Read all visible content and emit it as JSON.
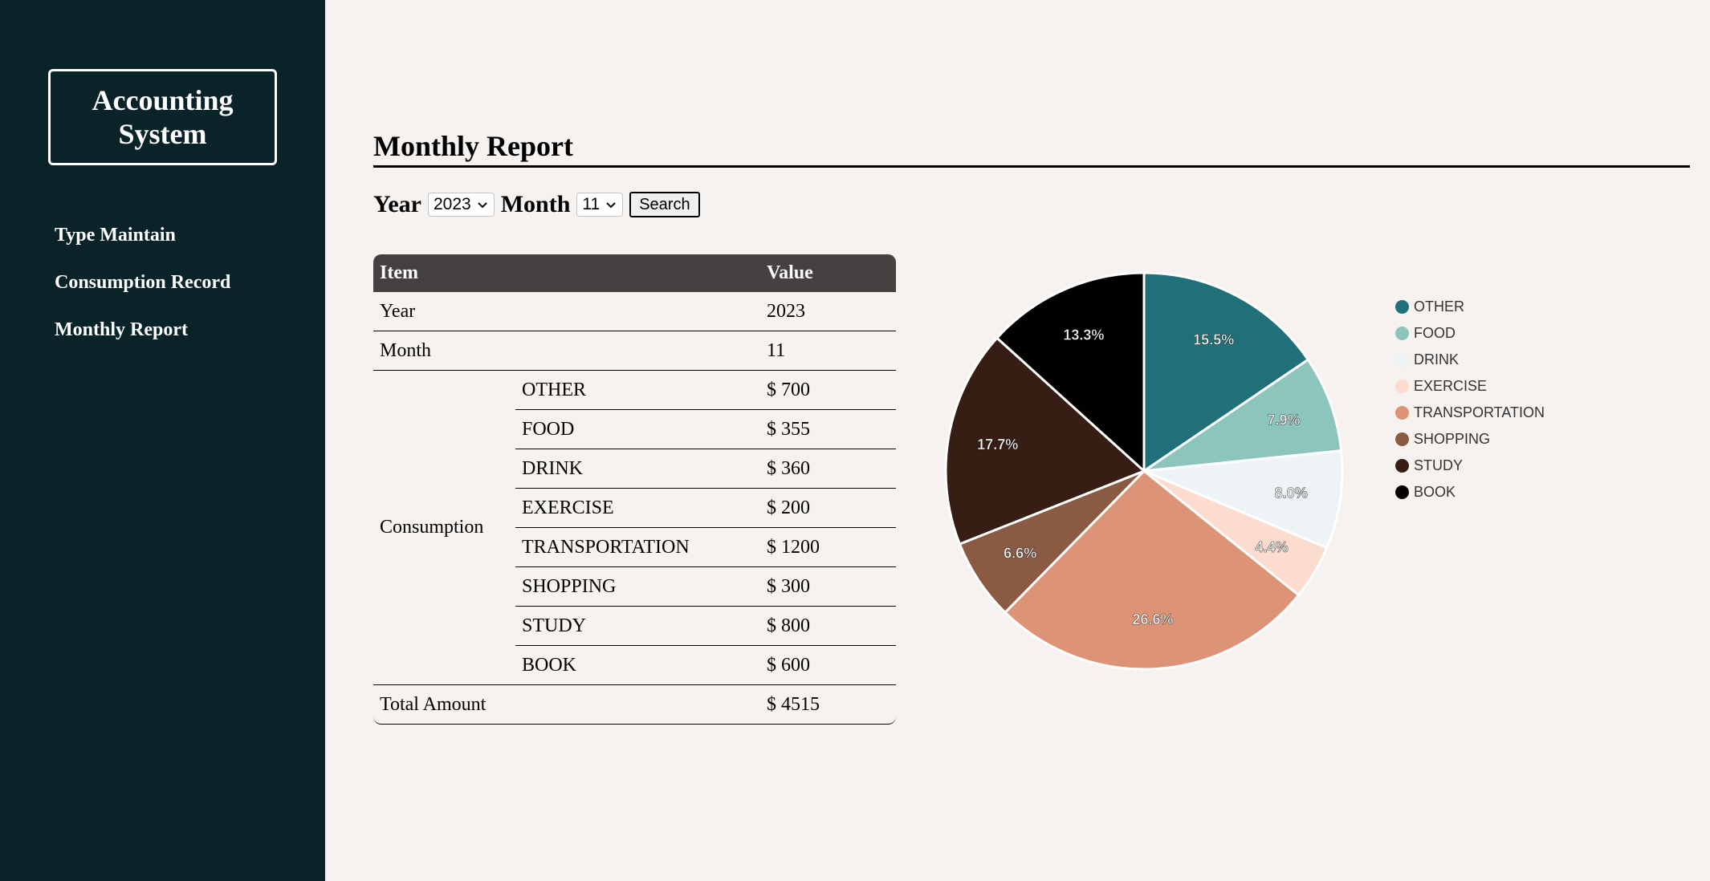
{
  "sidebar": {
    "brand": "Accounting System",
    "nav": [
      {
        "label": "Type Maintain"
      },
      {
        "label": "Consumption Record"
      },
      {
        "label": "Monthly Report"
      }
    ]
  },
  "main": {
    "title": "Monthly Report",
    "filters": {
      "year_label": "Year",
      "year_value": "2023",
      "month_label": "Month",
      "month_value": "11",
      "search_label": "Search"
    },
    "table": {
      "headers": [
        "Item",
        "Value"
      ],
      "year_label": "Year",
      "year_value": "2023",
      "month_label": "Month",
      "month_value": "11",
      "consumption_label": "Consumption",
      "rows": [
        {
          "type": "OTHER",
          "value": "$ 700"
        },
        {
          "type": "FOOD",
          "value": "$ 355"
        },
        {
          "type": "DRINK",
          "value": "$ 360"
        },
        {
          "type": "EXERCISE",
          "value": "$ 200"
        },
        {
          "type": "TRANSPORTATION",
          "value": "$ 1200"
        },
        {
          "type": "SHOPPING",
          "value": "$ 300"
        },
        {
          "type": "STUDY",
          "value": "$ 800"
        },
        {
          "type": "BOOK",
          "value": "$ 600"
        }
      ],
      "total_label": "Total Amount",
      "total_value": "$ 4515"
    }
  },
  "chart_data": {
    "type": "pie",
    "categories": [
      "OTHER",
      "FOOD",
      "DRINK",
      "EXERCISE",
      "TRANSPORTATION",
      "SHOPPING",
      "STUDY",
      "BOOK"
    ],
    "values": [
      700,
      355,
      360,
      200,
      1200,
      300,
      800,
      600
    ],
    "labels": [
      "15.5%",
      "7.9%",
      "8.0%",
      "4.4%",
      "26.6%",
      "6.6%",
      "17.7%",
      "13.3%"
    ],
    "colors": [
      "#216f78",
      "#8cc5bb",
      "#eef4f6",
      "#fbdccf",
      "#dd9476",
      "#8a5a43",
      "#361e15",
      "#030000"
    ],
    "legend": "right"
  }
}
